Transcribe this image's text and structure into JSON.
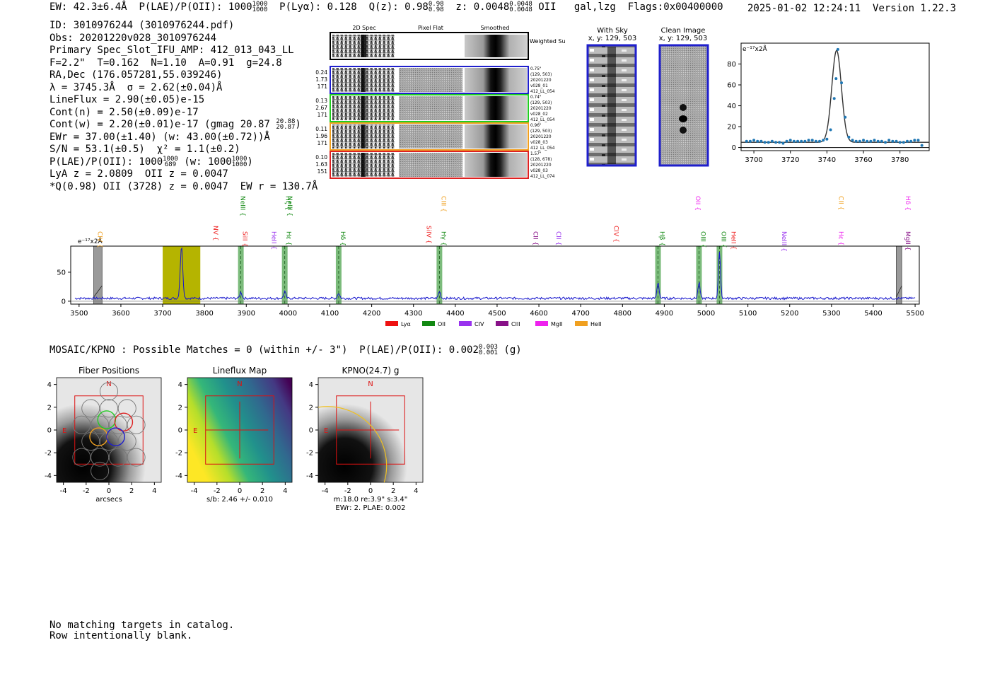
{
  "header": {
    "ew": "EW: 42.3±6.4Å",
    "plae_label": "P(LAE)/P(OII): 1000",
    "plae_hi": "1000",
    "plae_lo": "1000",
    "plya": "P(Lyα): 0.128",
    "qz": "Q(z): 0.98",
    "qz_hi": "0.98",
    "qz_lo": "0.98",
    "z": "z: 0.0048",
    "z_hi": "0.0048",
    "z_lo": "0.0048",
    "z_line": "OII",
    "gal": "gal,lzg",
    "flags": "Flags:0x00400000",
    "timestamp": "2025-01-02 12:24:11",
    "version": "Version 1.22.3"
  },
  "info": {
    "id": "ID: 3010976244 (3010976244.pdf)",
    "obs": "Obs: 20201220v028_3010976244",
    "primary": "Primary Spec_Slot_IFU_AMP: 412_013_043_LL",
    "fit": "F=2.2\"  T=0.162  N=1.10  A=0.91  g=24.8",
    "radec": "RA,Dec (176.057281,55.039246)",
    "lambda": "λ = 3745.3Å  σ = 2.62(±0.04)Å",
    "lineflux": "LineFlux = 2.90(±0.05)e-15",
    "contn": "Cont(n) = 2.50(±0.09)e-17",
    "contw": "Cont(w) = 2.20(±0.01)e-17 (gmag 20.87",
    "contw_hi": "20.88",
    "contw_lo": "20.87",
    "contw_end": ")",
    "ewr": "EWr = 37.00(±1.40) (w: 43.00(±0.72))Å",
    "sn": "S/N = 53.1(±0.5)  χ² = 1.1(±0.2)",
    "plae": "P(LAE)/P(OII): 1000",
    "plae_hi": "1000",
    "plae_lo": "689",
    "plae_w": "(w: 1000",
    "plae_w_hi": "1000",
    "plae_w_lo": "1000",
    "plae_w_end": ")",
    "lya": "LyA z = 2.0809  OII z = 0.0047",
    "q": "*Q(0.98) OII (3728) z = 0.0047  EW r = 130.7Å"
  },
  "spec2d": {
    "headers": [
      "2D Spec",
      "Pixel Flat",
      "Smoothed"
    ],
    "weighted_label": "Weighted Sum",
    "rows": [
      {
        "stats": [
          "0.24",
          "1.73",
          "171"
        ],
        "color": "#1f1fcc",
        "notes": [
          "0.75\"",
          "(129, 503)",
          "20201220",
          "v028_01",
          "412_LL_054"
        ]
      },
      {
        "stats": [
          "0.13",
          "2.67",
          "171"
        ],
        "color": "#22cc22",
        "notes": [
          "0.74\"",
          "(129, 503)",
          "20201220",
          "v028_02",
          "412_LL_054"
        ]
      },
      {
        "stats": [
          "0.11",
          "1.96",
          "171"
        ],
        "color": "#f0a020",
        "notes": [
          "0.96\"",
          "(129, 503)",
          "20201220",
          "v028_03",
          "412_LL_054"
        ]
      },
      {
        "stats": [
          "0.10",
          "1.63",
          "151"
        ],
        "color": "#dd2222",
        "notes": [
          "1.57\"",
          "(128, 678)",
          "20201220",
          "v028_03",
          "412_LL_074"
        ]
      }
    ]
  },
  "cutouts": {
    "with_sky_title": "With Sky",
    "with_sky_xy": "x, y: 129, 503",
    "clean_title": "Clean Image",
    "clean_xy": "x, y: 129, 503"
  },
  "chart_data": [
    {
      "type": "line",
      "name": "line-fit-zoom",
      "ylabel": "e⁻¹⁷x2Å",
      "xlim": [
        3693,
        3796
      ],
      "ylim": [
        -3,
        100
      ],
      "xticks": [
        3700,
        3720,
        3740,
        3760,
        3780
      ],
      "yticks": [
        0,
        20,
        40,
        60,
        80
      ],
      "fit": {
        "center": 3745.3,
        "sigma": 2.62,
        "amplitude": 88,
        "continuum": 5
      },
      "points": {
        "x": [
          3696,
          3698,
          3700,
          3702,
          3704,
          3706,
          3708,
          3710,
          3712,
          3714,
          3716,
          3718,
          3720,
          3722,
          3724,
          3726,
          3728,
          3730,
          3732,
          3734,
          3736,
          3738,
          3740,
          3742,
          3744,
          3745,
          3746,
          3748,
          3750,
          3752,
          3754,
          3756,
          3758,
          3760,
          3762,
          3764,
          3766,
          3768,
          3770,
          3772,
          3774,
          3776,
          3778,
          3780,
          3782,
          3784,
          3786,
          3788,
          3790,
          3792
        ],
        "y": [
          6,
          6,
          7,
          6,
          6,
          5,
          5,
          6,
          5,
          5,
          4,
          6,
          7,
          6,
          6,
          6,
          6,
          7,
          7,
          6,
          6,
          7,
          8,
          17,
          47,
          66,
          94,
          62,
          29,
          10,
          7,
          6,
          6,
          7,
          6,
          6,
          7,
          6,
          6,
          5,
          7,
          6,
          6,
          5,
          5,
          6,
          6,
          7,
          7,
          2
        ]
      }
    },
    {
      "type": "line",
      "name": "full-spectrum",
      "ylabel": "e⁻¹⁷x2Å",
      "xlim": [
        3480,
        5510
      ],
      "ylim": [
        -5,
        95
      ],
      "xticks": [
        3500,
        3600,
        3700,
        3800,
        3900,
        4000,
        4100,
        4200,
        4300,
        4400,
        4500,
        4600,
        4700,
        4800,
        4900,
        5000,
        5100,
        5200,
        5300,
        5400,
        5500
      ],
      "yticks": [
        0,
        50
      ],
      "continuum": 5,
      "peaks": [
        {
          "x": 3745,
          "y": 90,
          "sigma": 3
        },
        {
          "x": 3887,
          "y": 11,
          "sigma": 2.5
        },
        {
          "x": 3992,
          "y": 12,
          "sigma": 2.5
        },
        {
          "x": 4121,
          "y": 9,
          "sigma": 2.5
        },
        {
          "x": 4362,
          "y": 12,
          "sigma": 2.5
        },
        {
          "x": 4885,
          "y": 28,
          "sigma": 2.5
        },
        {
          "x": 4983,
          "y": 27,
          "sigma": 2.5
        },
        {
          "x": 5032,
          "y": 82,
          "sigma": 2.5
        }
      ],
      "highlight_band": [
        3700,
        3790
      ],
      "masked_bands": [
        [
          3535,
          3555
        ],
        [
          5455,
          5468
        ]
      ],
      "matched_lines": [
        3887,
        3992,
        4121,
        4362,
        4885,
        4983,
        5032
      ],
      "line_labels": [
        {
          "text": "CIV",
          "x": 3540,
          "color": "#f0a020",
          "tier": 2
        },
        {
          "text": "NV",
          "x": 3817,
          "color": "#ee2222",
          "tier": 1
        },
        {
          "text": "SiII",
          "x": 3887,
          "color": "#ee2222",
          "tier": 2
        },
        {
          "text": "NeIII",
          "x": 3882,
          "color": "#118811",
          "tier": 0
        },
        {
          "text": "HeII",
          "x": 3956,
          "color": "#9932ee",
          "tier": 2
        },
        {
          "text": "Hε",
          "x": 3992,
          "color": "#118811",
          "tier": 2
        },
        {
          "text": "Hζ",
          "x": 3990,
          "color": "#118811",
          "tier": 0
        },
        {
          "text": "NeIII",
          "x": 3994,
          "color": "#118811",
          "tier": 0
        },
        {
          "text": "Hδ",
          "x": 4121,
          "color": "#118811",
          "tier": 2
        },
        {
          "text": "SiIV",
          "x": 4327,
          "color": "#ee2222",
          "tier": 1
        },
        {
          "text": "CIII",
          "x": 4362,
          "color": "#f0a020",
          "tier": 0
        },
        {
          "text": "Hγ",
          "x": 4362,
          "color": "#118811",
          "tier": 2
        },
        {
          "text": "CII",
          "x": 4582,
          "color": "#881188",
          "tier": 2
        },
        {
          "text": "CII",
          "x": 4637,
          "color": "#9932ee",
          "tier": 2
        },
        {
          "text": "CIV",
          "x": 4775,
          "color": "#ee2222",
          "tier": 1
        },
        {
          "text": "Hβ",
          "x": 4885,
          "color": "#118811",
          "tier": 2
        },
        {
          "text": "OII",
          "x": 4970,
          "color": "#ee22ee",
          "tier": 0
        },
        {
          "text": "OIII",
          "x": 4983,
          "color": "#118811",
          "tier": 2
        },
        {
          "text": "OIII",
          "x": 5032,
          "color": "#118811",
          "tier": 2
        },
        {
          "text": "HeII",
          "x": 5056,
          "color": "#ee2222",
          "tier": 2
        },
        {
          "text": "NeIII",
          "x": 5177,
          "color": "#9932ee",
          "tier": 2
        },
        {
          "text": "CII",
          "x": 5313,
          "color": "#f0a020",
          "tier": 0
        },
        {
          "text": "Hε",
          "x": 5313,
          "color": "#ee22ee",
          "tier": 2
        },
        {
          "text": "Hδ",
          "x": 5473,
          "color": "#ee22ee",
          "tier": 0
        },
        {
          "text": "MgII",
          "x": 5473,
          "color": "#881188",
          "tier": 2
        }
      ],
      "legend": [
        {
          "label": "Lyα",
          "color": "#ee1111"
        },
        {
          "label": "OII",
          "color": "#118811"
        },
        {
          "label": "CIV",
          "color": "#9932ee"
        },
        {
          "label": "CIII",
          "color": "#881188"
        },
        {
          "label": "MgII",
          "color": "#ee22ee"
        },
        {
          "label": "HeII",
          "color": "#f0a020"
        }
      ]
    }
  ],
  "mosaic": {
    "line": "MOSAIC/KPNO : Possible Matches = 0 (within +/- 3\")  P(LAE)/P(OII): 0.002",
    "hi": "0.003",
    "lo": "0.001",
    "end": "(g)"
  },
  "panels": {
    "fiber": {
      "title": "Fiber Positions",
      "xlabel": "arcsecs",
      "n": "N",
      "e": "E"
    },
    "lineflux": {
      "title": "Lineflux Map",
      "xlabel": "s/b: 2.46 +/- 0.010",
      "n": "N",
      "e": "E"
    },
    "kpno": {
      "title": "KPNO(24.7) g",
      "xlabel": "m:18.0  re:3.9\"  s:3.4\"",
      "xlabel2": "EWr: 2. PLAE: 0.002",
      "n": "N",
      "e": "E"
    },
    "ticks": [
      "-4",
      "-2",
      "0",
      "2",
      "4"
    ]
  },
  "catalog": {
    "line1": "No matching targets in catalog.",
    "line2": "Row intentionally blank."
  }
}
